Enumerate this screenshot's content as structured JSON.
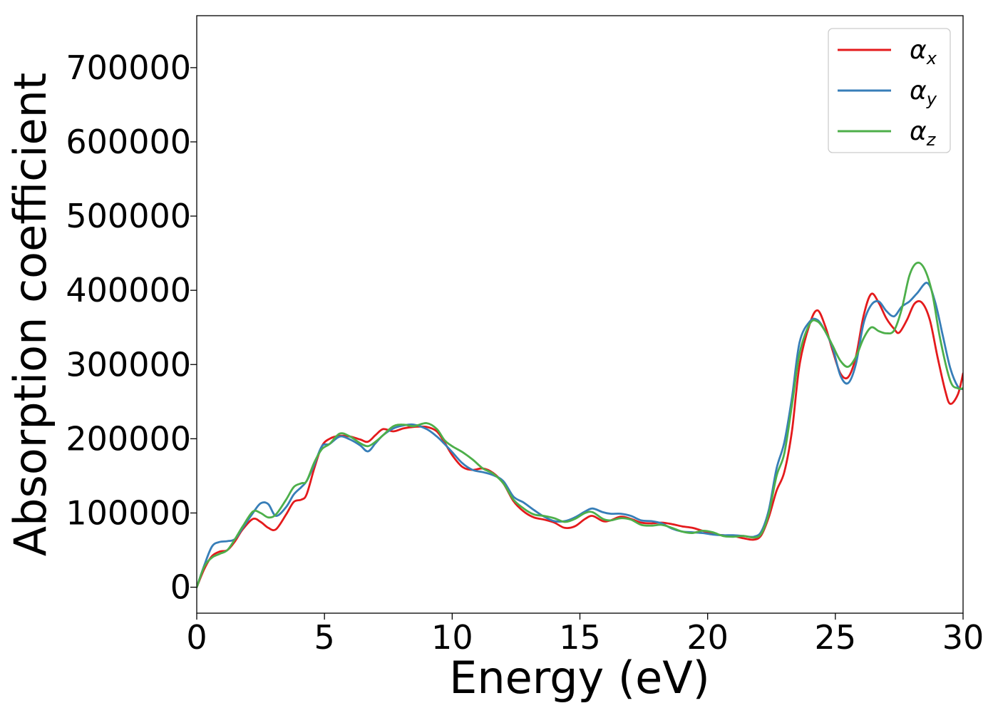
{
  "chart_data": {
    "type": "line",
    "title": "",
    "xlabel": "Energy (eV)",
    "ylabel": "Absorption coefficient",
    "xlim": [
      0,
      30
    ],
    "ylim": [
      -35000,
      770000
    ],
    "x_ticks": [
      0,
      5,
      10,
      15,
      20,
      25,
      30
    ],
    "y_ticks": [
      0,
      100000,
      200000,
      300000,
      400000,
      500000,
      600000,
      700000
    ],
    "grid": false,
    "legend_position": "top-right",
    "series": [
      {
        "name": "α",
        "subscript": "x",
        "color": "#e41a1c",
        "points": [
          [
            0,
            0
          ],
          [
            0.3,
            25000
          ],
          [
            0.6,
            42000
          ],
          [
            0.9,
            48000
          ],
          [
            1.2,
            50000
          ],
          [
            1.5,
            62000
          ],
          [
            1.8,
            78000
          ],
          [
            2.2,
            92000
          ],
          [
            2.5,
            88000
          ],
          [
            2.8,
            80000
          ],
          [
            3.1,
            78000
          ],
          [
            3.5,
            98000
          ],
          [
            3.8,
            115000
          ],
          [
            4.1,
            118000
          ],
          [
            4.3,
            125000
          ],
          [
            4.6,
            160000
          ],
          [
            4.9,
            190000
          ],
          [
            5.2,
            200000
          ],
          [
            5.6,
            204000
          ],
          [
            6.0,
            203000
          ],
          [
            6.4,
            199000
          ],
          [
            6.7,
            196000
          ],
          [
            7.0,
            205000
          ],
          [
            7.3,
            213000
          ],
          [
            7.7,
            210000
          ],
          [
            8.1,
            214000
          ],
          [
            8.5,
            216000
          ],
          [
            9.0,
            216000
          ],
          [
            9.4,
            210000
          ],
          [
            9.7,
            195000
          ],
          [
            10.0,
            178000
          ],
          [
            10.4,
            162000
          ],
          [
            10.8,
            158000
          ],
          [
            11.2,
            160000
          ],
          [
            11.6,
            154000
          ],
          [
            12.0,
            140000
          ],
          [
            12.4,
            116000
          ],
          [
            12.8,
            102000
          ],
          [
            13.2,
            94000
          ],
          [
            13.6,
            91000
          ],
          [
            14.0,
            87000
          ],
          [
            14.4,
            80000
          ],
          [
            14.8,
            82000
          ],
          [
            15.2,
            92000
          ],
          [
            15.5,
            96000
          ],
          [
            15.9,
            89000
          ],
          [
            16.2,
            90000
          ],
          [
            16.6,
            95000
          ],
          [
            17.0,
            92000
          ],
          [
            17.4,
            87000
          ],
          [
            17.8,
            86000
          ],
          [
            18.2,
            87000
          ],
          [
            18.6,
            85000
          ],
          [
            19.0,
            82000
          ],
          [
            19.4,
            80000
          ],
          [
            19.8,
            76000
          ],
          [
            20.2,
            72000
          ],
          [
            20.6,
            70000
          ],
          [
            21.0,
            69000
          ],
          [
            21.4,
            66000
          ],
          [
            21.8,
            64000
          ],
          [
            22.1,
            70000
          ],
          [
            22.4,
            95000
          ],
          [
            22.7,
            130000
          ],
          [
            23.0,
            155000
          ],
          [
            23.3,
            210000
          ],
          [
            23.6,
            300000
          ],
          [
            24.0,
            355000
          ],
          [
            24.3,
            373000
          ],
          [
            24.6,
            352000
          ],
          [
            24.9,
            318000
          ],
          [
            25.2,
            288000
          ],
          [
            25.5,
            283000
          ],
          [
            25.8,
            310000
          ],
          [
            26.1,
            365000
          ],
          [
            26.4,
            395000
          ],
          [
            26.7,
            383000
          ],
          [
            27.0,
            362000
          ],
          [
            27.3,
            348000
          ],
          [
            27.5,
            343000
          ],
          [
            27.8,
            360000
          ],
          [
            28.1,
            382000
          ],
          [
            28.4,
            383000
          ],
          [
            28.7,
            360000
          ],
          [
            29.0,
            310000
          ],
          [
            29.3,
            265000
          ],
          [
            29.5,
            247000
          ],
          [
            29.8,
            260000
          ],
          [
            30.0,
            288000
          ]
        ]
      },
      {
        "name": "α",
        "subscript": "y",
        "color": "#377eb8",
        "points": [
          [
            0,
            0
          ],
          [
            0.3,
            30000
          ],
          [
            0.6,
            55000
          ],
          [
            0.9,
            61000
          ],
          [
            1.2,
            62000
          ],
          [
            1.5,
            65000
          ],
          [
            1.8,
            80000
          ],
          [
            2.2,
            100000
          ],
          [
            2.5,
            113000
          ],
          [
            2.8,
            112000
          ],
          [
            3.1,
            96000
          ],
          [
            3.5,
            108000
          ],
          [
            3.8,
            125000
          ],
          [
            4.1,
            135000
          ],
          [
            4.3,
            143000
          ],
          [
            4.6,
            165000
          ],
          [
            4.9,
            190000
          ],
          [
            5.2,
            193000
          ],
          [
            5.6,
            203000
          ],
          [
            6.0,
            199000
          ],
          [
            6.4,
            191000
          ],
          [
            6.7,
            183000
          ],
          [
            7.0,
            194000
          ],
          [
            7.3,
            205000
          ],
          [
            7.7,
            214000
          ],
          [
            8.1,
            218000
          ],
          [
            8.5,
            219000
          ],
          [
            9.0,
            213000
          ],
          [
            9.4,
            203000
          ],
          [
            9.7,
            193000
          ],
          [
            10.0,
            182000
          ],
          [
            10.4,
            167000
          ],
          [
            10.8,
            158000
          ],
          [
            11.2,
            155000
          ],
          [
            11.6,
            151000
          ],
          [
            12.0,
            143000
          ],
          [
            12.4,
            122000
          ],
          [
            12.8,
            114000
          ],
          [
            13.2,
            104000
          ],
          [
            13.6,
            95000
          ],
          [
            14.0,
            89000
          ],
          [
            14.4,
            89000
          ],
          [
            14.8,
            94000
          ],
          [
            15.2,
            102000
          ],
          [
            15.5,
            106000
          ],
          [
            15.9,
            101000
          ],
          [
            16.2,
            99000
          ],
          [
            16.6,
            99000
          ],
          [
            17.0,
            96000
          ],
          [
            17.4,
            90000
          ],
          [
            17.8,
            89000
          ],
          [
            18.2,
            86000
          ],
          [
            18.6,
            79000
          ],
          [
            19.0,
            75000
          ],
          [
            19.4,
            74000
          ],
          [
            19.8,
            73000
          ],
          [
            20.2,
            71000
          ],
          [
            20.6,
            70000
          ],
          [
            21.0,
            70000
          ],
          [
            21.4,
            69000
          ],
          [
            21.8,
            68000
          ],
          [
            22.1,
            75000
          ],
          [
            22.4,
            105000
          ],
          [
            22.7,
            160000
          ],
          [
            23.0,
            195000
          ],
          [
            23.3,
            255000
          ],
          [
            23.6,
            330000
          ],
          [
            24.0,
            358000
          ],
          [
            24.3,
            360000
          ],
          [
            24.6,
            345000
          ],
          [
            24.9,
            322000
          ],
          [
            25.2,
            285000
          ],
          [
            25.5,
            275000
          ],
          [
            25.8,
            300000
          ],
          [
            26.1,
            355000
          ],
          [
            26.4,
            380000
          ],
          [
            26.7,
            385000
          ],
          [
            27.0,
            372000
          ],
          [
            27.3,
            365000
          ],
          [
            27.6,
            378000
          ],
          [
            27.9,
            385000
          ],
          [
            28.2,
            396000
          ],
          [
            28.6,
            410000
          ],
          [
            28.9,
            385000
          ],
          [
            29.2,
            340000
          ],
          [
            29.5,
            295000
          ],
          [
            29.8,
            270000
          ],
          [
            30.0,
            267000
          ]
        ]
      },
      {
        "name": "α",
        "subscript": "z",
        "color": "#4daf4a",
        "points": [
          [
            0,
            0
          ],
          [
            0.3,
            28000
          ],
          [
            0.6,
            40000
          ],
          [
            0.9,
            45000
          ],
          [
            1.2,
            50000
          ],
          [
            1.5,
            65000
          ],
          [
            1.8,
            82000
          ],
          [
            2.2,
            102000
          ],
          [
            2.5,
            100000
          ],
          [
            2.8,
            94000
          ],
          [
            3.1,
            98000
          ],
          [
            3.5,
            118000
          ],
          [
            3.8,
            135000
          ],
          [
            4.1,
            140000
          ],
          [
            4.3,
            143000
          ],
          [
            4.6,
            168000
          ],
          [
            4.9,
            186000
          ],
          [
            5.2,
            193000
          ],
          [
            5.6,
            207000
          ],
          [
            6.0,
            203000
          ],
          [
            6.4,
            194000
          ],
          [
            6.7,
            190000
          ],
          [
            7.0,
            196000
          ],
          [
            7.3,
            205000
          ],
          [
            7.7,
            217000
          ],
          [
            8.1,
            219000
          ],
          [
            8.5,
            217000
          ],
          [
            9.0,
            221000
          ],
          [
            9.4,
            213000
          ],
          [
            9.7,
            198000
          ],
          [
            10.0,
            190000
          ],
          [
            10.4,
            182000
          ],
          [
            10.8,
            172000
          ],
          [
            11.2,
            160000
          ],
          [
            11.6,
            153000
          ],
          [
            12.0,
            140000
          ],
          [
            12.4,
            118000
          ],
          [
            12.8,
            106000
          ],
          [
            13.2,
            98000
          ],
          [
            13.6,
            96000
          ],
          [
            14.0,
            93000
          ],
          [
            14.4,
            88000
          ],
          [
            14.8,
            92000
          ],
          [
            15.2,
            100000
          ],
          [
            15.5,
            101000
          ],
          [
            15.9,
            92000
          ],
          [
            16.2,
            90000
          ],
          [
            16.6,
            93000
          ],
          [
            17.0,
            91000
          ],
          [
            17.4,
            84000
          ],
          [
            17.8,
            83000
          ],
          [
            18.2,
            84000
          ],
          [
            18.6,
            80000
          ],
          [
            19.0,
            75000
          ],
          [
            19.4,
            73000
          ],
          [
            19.8,
            76000
          ],
          [
            20.2,
            74000
          ],
          [
            20.6,
            69000
          ],
          [
            21.0,
            68000
          ],
          [
            21.4,
            69000
          ],
          [
            21.8,
            67000
          ],
          [
            22.1,
            72000
          ],
          [
            22.4,
            100000
          ],
          [
            22.7,
            150000
          ],
          [
            23.0,
            180000
          ],
          [
            23.3,
            245000
          ],
          [
            23.6,
            315000
          ],
          [
            24.0,
            355000
          ],
          [
            24.3,
            358000
          ],
          [
            24.6,
            345000
          ],
          [
            24.9,
            325000
          ],
          [
            25.2,
            305000
          ],
          [
            25.5,
            297000
          ],
          [
            25.8,
            310000
          ],
          [
            26.1,
            335000
          ],
          [
            26.4,
            350000
          ],
          [
            26.7,
            345000
          ],
          [
            27.0,
            342000
          ],
          [
            27.3,
            346000
          ],
          [
            27.6,
            375000
          ],
          [
            27.9,
            420000
          ],
          [
            28.2,
            437000
          ],
          [
            28.5,
            428000
          ],
          [
            28.8,
            395000
          ],
          [
            29.1,
            335000
          ],
          [
            29.5,
            278000
          ],
          [
            29.8,
            268000
          ],
          [
            30.0,
            268000
          ]
        ]
      }
    ]
  }
}
